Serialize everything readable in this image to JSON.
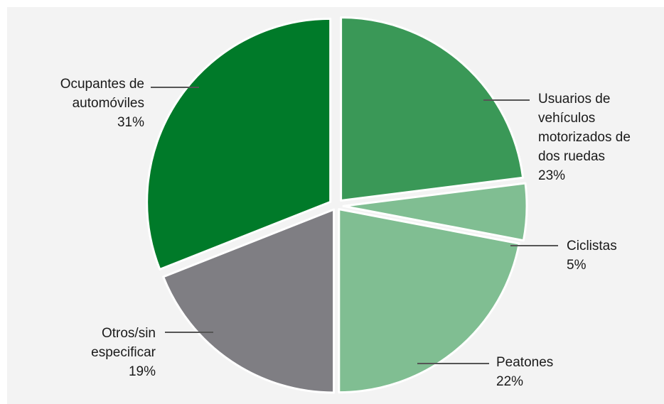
{
  "chart_data": {
    "type": "pie",
    "title": "",
    "start_angle_deg": 0,
    "direction": "clockwise",
    "slices": [
      {
        "label": "Usuarios de\nvehículos\nmotorizados de\ndos ruedas",
        "value": 23,
        "display": "23%",
        "color": "#3a9857"
      },
      {
        "label": "Ciclistas",
        "value": 5,
        "display": "5%",
        "color": "#80be92"
      },
      {
        "label": "Peatones",
        "value": 22,
        "display": "22%",
        "color": "#80be92"
      },
      {
        "label": "Otros/sin\nespecificar",
        "value": 19,
        "display": "19%",
        "color": "#7f7e83"
      },
      {
        "label": "Ocupantes de\nautomóviles",
        "value": 31,
        "display": "31%",
        "color": "#007a29"
      }
    ]
  }
}
